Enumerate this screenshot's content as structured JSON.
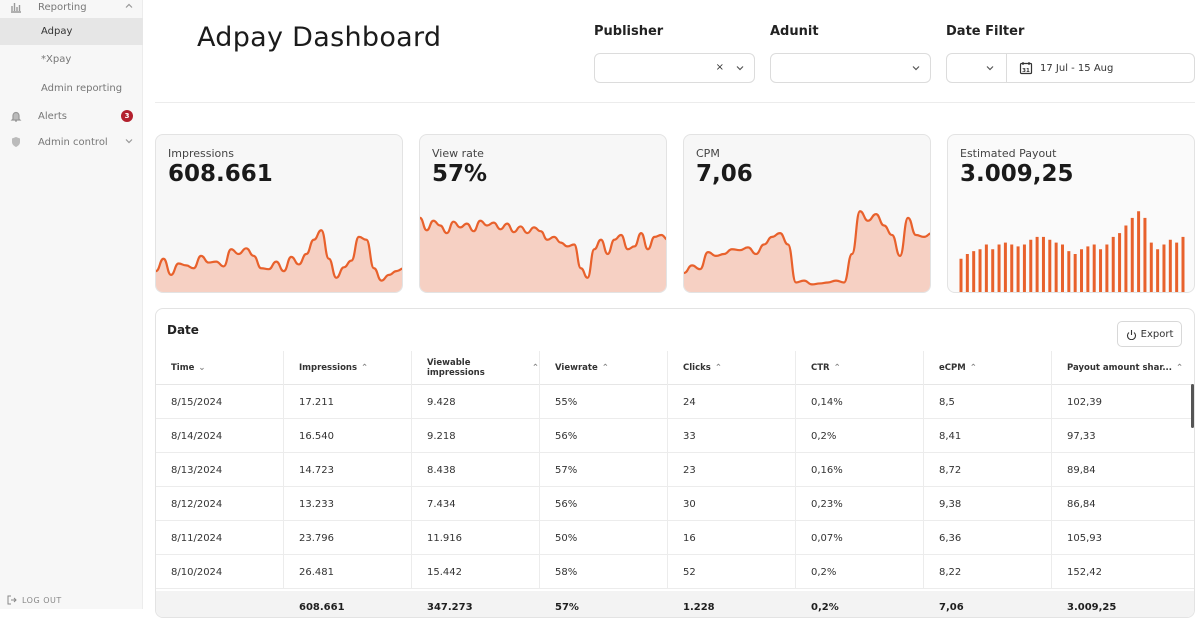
{
  "sidebar": {
    "reporting_label": "Reporting",
    "sub_items": [
      "Adpay",
      "*Xpay",
      "Admin reporting"
    ],
    "alerts_label": "Alerts",
    "alerts_badge": "3",
    "admin_label": "Admin control",
    "logout_label": "LOG OUT"
  },
  "header": {
    "title": "Adpay Dashboard",
    "publisher_label": "Publisher",
    "adunit_label": "Adunit",
    "date_filter_label": "Date Filter",
    "date_range": "17 Jul - 15 Aug",
    "calendar_day": "31"
  },
  "cards": [
    {
      "label": "Impressions",
      "value": "608.661",
      "spark": [
        0.22,
        0.35,
        0.18,
        0.3,
        0.28,
        0.25,
        0.38,
        0.31,
        0.32,
        0.27,
        0.45,
        0.4,
        0.46,
        0.38,
        0.25,
        0.24,
        0.32,
        0.22,
        0.37,
        0.29,
        0.4,
        0.55,
        0.65,
        0.35,
        0.15,
        0.26,
        0.33,
        0.58,
        0.55,
        0.25,
        0.12,
        0.18,
        0.22,
        0.25
      ]
    },
    {
      "label": "View rate",
      "value": "57%",
      "spark": [
        0.78,
        0.65,
        0.75,
        0.7,
        0.62,
        0.74,
        0.68,
        0.72,
        0.64,
        0.75,
        0.7,
        0.73,
        0.66,
        0.72,
        0.63,
        0.69,
        0.62,
        0.68,
        0.64,
        0.55,
        0.58,
        0.52,
        0.48,
        0.5,
        0.25,
        0.15,
        0.45,
        0.55,
        0.4,
        0.55,
        0.6,
        0.45,
        0.48,
        0.62,
        0.45,
        0.58,
        0.6,
        0.55
      ]
    },
    {
      "label": "CPM",
      "value": "7,06",
      "spark": [
        0.2,
        0.28,
        0.24,
        0.42,
        0.38,
        0.4,
        0.45,
        0.44,
        0.47,
        0.4,
        0.5,
        0.58,
        0.62,
        0.5,
        0.1,
        0.12,
        0.08,
        0.09,
        0.1,
        0.12,
        0.1,
        0.4,
        0.85,
        0.75,
        0.82,
        0.7,
        0.6,
        0.38,
        0.78,
        0.6,
        0.58,
        0.62
      ]
    },
    {
      "label": "Estimated Payout",
      "value": "3.009,25",
      "spark": [
        0.35,
        0.4,
        0.43,
        0.45,
        0.5,
        0.45,
        0.5,
        0.52,
        0.5,
        0.48,
        0.5,
        0.55,
        0.58,
        0.58,
        0.55,
        0.52,
        0.5,
        0.43,
        0.4,
        0.45,
        0.48,
        0.5,
        0.45,
        0.5,
        0.58,
        0.62,
        0.7,
        0.78,
        0.85,
        0.78,
        0.52,
        0.45,
        0.5,
        0.55,
        0.52,
        0.58
      ]
    }
  ],
  "table": {
    "title": "Date",
    "export_label": "Export",
    "columns": [
      "Time",
      "Impressions",
      "Viewable impressions",
      "Viewrate",
      "Clicks",
      "CTR",
      "eCPM",
      "Payout amount shar..."
    ],
    "rows": [
      [
        "8/15/2024",
        "17.211",
        "9.428",
        "55%",
        "24",
        "0,14%",
        "8,5",
        "102,39"
      ],
      [
        "8/14/2024",
        "16.540",
        "9.218",
        "56%",
        "33",
        "0,2%",
        "8,41",
        "97,33"
      ],
      [
        "8/13/2024",
        "14.723",
        "8.438",
        "57%",
        "23",
        "0,16%",
        "8,72",
        "89,84"
      ],
      [
        "8/12/2024",
        "13.233",
        "7.434",
        "56%",
        "30",
        "0,23%",
        "9,38",
        "86,84"
      ],
      [
        "8/11/2024",
        "23.796",
        "11.916",
        "50%",
        "16",
        "0,07%",
        "6,36",
        "105,93"
      ],
      [
        "8/10/2024",
        "26.481",
        "15.442",
        "58%",
        "52",
        "0,2%",
        "8,22",
        "152,42"
      ]
    ],
    "totals": [
      "",
      "608.661",
      "347.273",
      "57%",
      "1.228",
      "0,2%",
      "7,06",
      "3.009,25"
    ]
  },
  "colors": {
    "accent": "#e8612c",
    "fill": "#f6d0c3",
    "badge": "#b3202d"
  }
}
